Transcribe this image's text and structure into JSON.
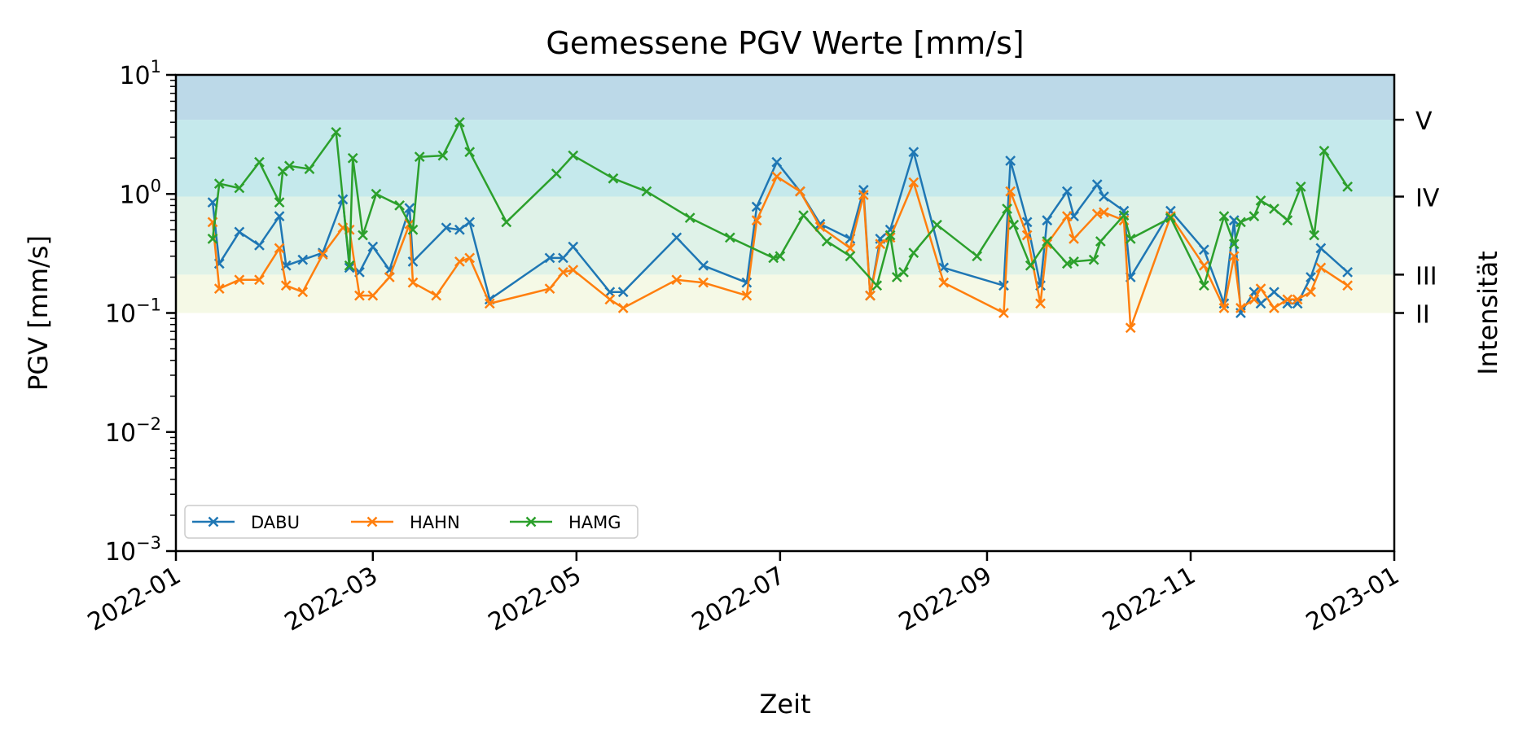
{
  "chart_data": {
    "type": "line",
    "title": "Gemessene PGV Werte [mm/s]",
    "xlabel": "Zeit",
    "ylabel": "PGV [mm/s]",
    "y2label": "Intensität",
    "y_scale": "log",
    "ylim": [
      0.001,
      10
    ],
    "xlim": [
      "2022-01-01",
      "2023-01-01"
    ],
    "x_ticks": [
      "2022-01-01",
      "2022-03-01",
      "2022-05-01",
      "2022-07-01",
      "2022-09-01",
      "2022-11-01",
      "2023-01-01"
    ],
    "x_tick_labels": [
      "2022-01",
      "2022-03",
      "2022-05",
      "2022-07",
      "2022-09",
      "2022-11",
      "2023-01"
    ],
    "y_ticks": [
      0.001,
      0.01,
      0.1,
      1,
      10
    ],
    "y_tick_labels": [
      {
        "base": "10",
        "exp": "−3"
      },
      {
        "base": "10",
        "exp": "−2"
      },
      {
        "base": "10",
        "exp": "−1"
      },
      {
        "base": "10",
        "exp": "0"
      },
      {
        "base": "10",
        "exp": "1"
      }
    ],
    "intensity_ticks": [
      {
        "label": "V",
        "value": 4.2
      },
      {
        "label": "IV",
        "value": 0.95
      },
      {
        "label": "III",
        "value": 0.21
      },
      {
        "label": "II",
        "value": 0.1
      }
    ],
    "intensity_bands": [
      {
        "from": 0.1,
        "to": 0.21,
        "color": "#f5f9e6"
      },
      {
        "from": 0.21,
        "to": 0.95,
        "color": "#dff2e8"
      },
      {
        "from": 0.95,
        "to": 4.2,
        "color": "#c5e9ec"
      },
      {
        "from": 4.2,
        "to": 10,
        "color": "#bcd9e8"
      }
    ],
    "grid": false,
    "legend_position": "lower-left",
    "series": [
      {
        "name": "DABU",
        "color": "#1f77b4",
        "points": [
          [
            "2022-01-12",
            0.85
          ],
          [
            "2022-01-14",
            0.26
          ],
          [
            "2022-01-20",
            0.48
          ],
          [
            "2022-01-26",
            0.37
          ],
          [
            "2022-02-01",
            0.65
          ],
          [
            "2022-02-03",
            0.25
          ],
          [
            "2022-02-08",
            0.28
          ],
          [
            "2022-02-14",
            0.32
          ],
          [
            "2022-02-20",
            0.9
          ],
          [
            "2022-02-22",
            0.24
          ],
          [
            "2022-02-25",
            0.22
          ],
          [
            "2022-03-01",
            0.36
          ],
          [
            "2022-03-06",
            0.23
          ],
          [
            "2022-03-12",
            0.76
          ],
          [
            "2022-03-13",
            0.27
          ],
          [
            "2022-03-23",
            0.52
          ],
          [
            "2022-03-27",
            0.5
          ],
          [
            "2022-03-30",
            0.58
          ],
          [
            "2022-04-05",
            0.13
          ],
          [
            "2022-04-23",
            0.29
          ],
          [
            "2022-04-27",
            0.29
          ],
          [
            "2022-04-30",
            0.36
          ],
          [
            "2022-05-11",
            0.15
          ],
          [
            "2022-05-15",
            0.15
          ],
          [
            "2022-05-31",
            0.43
          ],
          [
            "2022-06-08",
            0.25
          ],
          [
            "2022-06-21",
            0.18
          ],
          [
            "2022-06-24",
            0.78
          ],
          [
            "2022-06-30",
            1.85
          ],
          [
            "2022-07-07",
            1.05
          ],
          [
            "2022-07-13",
            0.56
          ],
          [
            "2022-07-22",
            0.42
          ],
          [
            "2022-07-26",
            1.08
          ],
          [
            "2022-07-28",
            0.14
          ],
          [
            "2022-07-31",
            0.42
          ],
          [
            "2022-08-03",
            0.5
          ],
          [
            "2022-08-10",
            2.25
          ],
          [
            "2022-08-19",
            0.24
          ],
          [
            "2022-09-06",
            0.17
          ],
          [
            "2022-09-08",
            1.9
          ],
          [
            "2022-09-13",
            0.58
          ],
          [
            "2022-09-17",
            0.17
          ],
          [
            "2022-09-19",
            0.6
          ],
          [
            "2022-09-25",
            1.05
          ],
          [
            "2022-09-27",
            0.65
          ],
          [
            "2022-10-04",
            1.2
          ],
          [
            "2022-10-06",
            0.95
          ],
          [
            "2022-10-12",
            0.72
          ],
          [
            "2022-10-14",
            0.2
          ],
          [
            "2022-10-26",
            0.72
          ],
          [
            "2022-11-05",
            0.34
          ],
          [
            "2022-11-11",
            0.12
          ],
          [
            "2022-11-14",
            0.6
          ],
          [
            "2022-11-16",
            0.1
          ],
          [
            "2022-11-20",
            0.15
          ],
          [
            "2022-11-22",
            0.12
          ],
          [
            "2022-11-26",
            0.15
          ],
          [
            "2022-11-30",
            0.12
          ],
          [
            "2022-12-03",
            0.12
          ],
          [
            "2022-12-07",
            0.2
          ],
          [
            "2022-12-10",
            0.35
          ],
          [
            "2022-12-18",
            0.22
          ]
        ]
      },
      {
        "name": "HAHN",
        "color": "#ff7f0e",
        "points": [
          [
            "2022-01-12",
            0.58
          ],
          [
            "2022-01-14",
            0.16
          ],
          [
            "2022-01-20",
            0.19
          ],
          [
            "2022-01-26",
            0.19
          ],
          [
            "2022-02-01",
            0.35
          ],
          [
            "2022-02-03",
            0.17
          ],
          [
            "2022-02-08",
            0.15
          ],
          [
            "2022-02-14",
            0.31
          ],
          [
            "2022-02-20",
            0.52
          ],
          [
            "2022-02-22",
            0.5
          ],
          [
            "2022-02-25",
            0.14
          ],
          [
            "2022-03-01",
            0.14
          ],
          [
            "2022-03-06",
            0.2
          ],
          [
            "2022-03-12",
            0.56
          ],
          [
            "2022-03-13",
            0.18
          ],
          [
            "2022-03-20",
            0.14
          ],
          [
            "2022-03-27",
            0.27
          ],
          [
            "2022-03-30",
            0.29
          ],
          [
            "2022-04-05",
            0.12
          ],
          [
            "2022-04-23",
            0.16
          ],
          [
            "2022-04-27",
            0.22
          ],
          [
            "2022-04-30",
            0.23
          ],
          [
            "2022-05-11",
            0.13
          ],
          [
            "2022-05-15",
            0.11
          ],
          [
            "2022-05-31",
            0.19
          ],
          [
            "2022-06-08",
            0.18
          ],
          [
            "2022-06-21",
            0.14
          ],
          [
            "2022-06-24",
            0.6
          ],
          [
            "2022-06-30",
            1.4
          ],
          [
            "2022-07-07",
            1.05
          ],
          [
            "2022-07-13",
            0.53
          ],
          [
            "2022-07-22",
            0.35
          ],
          [
            "2022-07-26",
            0.98
          ],
          [
            "2022-07-28",
            0.14
          ],
          [
            "2022-07-31",
            0.38
          ],
          [
            "2022-08-03",
            0.43
          ],
          [
            "2022-08-10",
            1.25
          ],
          [
            "2022-08-19",
            0.18
          ],
          [
            "2022-09-06",
            0.1
          ],
          [
            "2022-09-08",
            1.05
          ],
          [
            "2022-09-13",
            0.45
          ],
          [
            "2022-09-17",
            0.12
          ],
          [
            "2022-09-19",
            0.38
          ],
          [
            "2022-09-25",
            0.65
          ],
          [
            "2022-09-27",
            0.42
          ],
          [
            "2022-10-04",
            0.68
          ],
          [
            "2022-10-06",
            0.7
          ],
          [
            "2022-10-12",
            0.6
          ],
          [
            "2022-10-14",
            0.075
          ],
          [
            "2022-10-26",
            0.65
          ],
          [
            "2022-11-05",
            0.25
          ],
          [
            "2022-11-11",
            0.11
          ],
          [
            "2022-11-14",
            0.3
          ],
          [
            "2022-11-16",
            0.11
          ],
          [
            "2022-11-20",
            0.13
          ],
          [
            "2022-11-22",
            0.16
          ],
          [
            "2022-11-26",
            0.11
          ],
          [
            "2022-11-30",
            0.13
          ],
          [
            "2022-12-03",
            0.13
          ],
          [
            "2022-12-07",
            0.15
          ],
          [
            "2022-12-10",
            0.24
          ],
          [
            "2022-12-18",
            0.17
          ]
        ]
      },
      {
        "name": "HAMG",
        "color": "#2ca02c",
        "points": [
          [
            "2022-01-12",
            0.42
          ],
          [
            "2022-01-14",
            1.22
          ],
          [
            "2022-01-20",
            1.12
          ],
          [
            "2022-01-26",
            1.85
          ],
          [
            "2022-02-01",
            0.85
          ],
          [
            "2022-02-02",
            1.55
          ],
          [
            "2022-02-04",
            1.72
          ],
          [
            "2022-02-10",
            1.62
          ],
          [
            "2022-02-18",
            3.3
          ],
          [
            "2022-02-22",
            0.25
          ],
          [
            "2022-02-23",
            2.0
          ],
          [
            "2022-02-26",
            0.45
          ],
          [
            "2022-03-02",
            1.0
          ],
          [
            "2022-03-09",
            0.8
          ],
          [
            "2022-03-13",
            0.5
          ],
          [
            "2022-03-15",
            2.05
          ],
          [
            "2022-03-22",
            2.1
          ],
          [
            "2022-03-27",
            4.0
          ],
          [
            "2022-03-30",
            2.25
          ],
          [
            "2022-04-10",
            0.58
          ],
          [
            "2022-04-25",
            1.48
          ],
          [
            "2022-04-30",
            2.1
          ],
          [
            "2022-05-12",
            1.35
          ],
          [
            "2022-05-22",
            1.05
          ],
          [
            "2022-06-04",
            0.63
          ],
          [
            "2022-06-16",
            0.43
          ],
          [
            "2022-06-29",
            0.29
          ],
          [
            "2022-07-01",
            0.3
          ],
          [
            "2022-07-08",
            0.66
          ],
          [
            "2022-07-15",
            0.4
          ],
          [
            "2022-07-22",
            0.3
          ],
          [
            "2022-07-30",
            0.17
          ],
          [
            "2022-08-03",
            0.45
          ],
          [
            "2022-08-05",
            0.2
          ],
          [
            "2022-08-07",
            0.22
          ],
          [
            "2022-08-10",
            0.32
          ],
          [
            "2022-08-17",
            0.55
          ],
          [
            "2022-08-29",
            0.3
          ],
          [
            "2022-09-07",
            0.75
          ],
          [
            "2022-09-09",
            0.55
          ],
          [
            "2022-09-14",
            0.25
          ],
          [
            "2022-09-19",
            0.4
          ],
          [
            "2022-09-25",
            0.26
          ],
          [
            "2022-09-27",
            0.27
          ],
          [
            "2022-10-03",
            0.28
          ],
          [
            "2022-10-05",
            0.4
          ],
          [
            "2022-10-12",
            0.66
          ],
          [
            "2022-10-14",
            0.42
          ],
          [
            "2022-10-26",
            0.63
          ],
          [
            "2022-11-05",
            0.17
          ],
          [
            "2022-11-11",
            0.65
          ],
          [
            "2022-11-14",
            0.38
          ],
          [
            "2022-11-16",
            0.58
          ],
          [
            "2022-11-20",
            0.65
          ],
          [
            "2022-11-22",
            0.88
          ],
          [
            "2022-11-26",
            0.75
          ],
          [
            "2022-11-30",
            0.6
          ],
          [
            "2022-12-04",
            1.15
          ],
          [
            "2022-12-08",
            0.45
          ],
          [
            "2022-12-11",
            2.3
          ],
          [
            "2022-12-18",
            1.15
          ]
        ]
      }
    ]
  }
}
